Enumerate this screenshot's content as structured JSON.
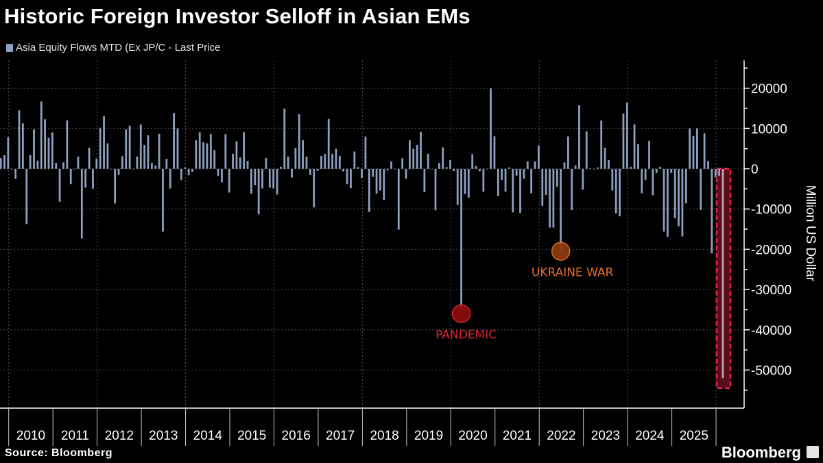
{
  "title": "Historic Foreign Investor Selloff in Asian EMs",
  "legend_label": "Asia Equity Flows MTD (Ex JP/C - Last Price",
  "source": "Source: Bloomberg",
  "brand": "Bloomberg",
  "colors": {
    "bars": "#8d9fbe",
    "pandemic": "#e0262c",
    "ukraine": "#e8702a",
    "highlight": "#e8234a",
    "background": "#000000"
  },
  "chart_data": {
    "type": "bar",
    "title": "Historic Foreign Investor Selloff in Asian EMs",
    "ylabel": "Million US Dollar",
    "ylim": [
      -60000,
      27000
    ],
    "yticks": [
      "20000",
      "10000",
      "0",
      "-10000",
      "-20000",
      "-30000",
      "-40000",
      "-50000"
    ],
    "xticks": [
      "2010",
      "2011",
      "2012",
      "2013",
      "2014",
      "2015",
      "2016",
      "2017",
      "2018",
      "2019",
      "2020",
      "2021",
      "2022",
      "2023",
      "2024",
      "2025"
    ],
    "grid": true,
    "legend": "top-left",
    "series": [
      {
        "name": "Asia Equity Flows MTD (Ex JP/C - Last Price",
        "monthly": [
          {
            "year": 2009,
            "first_month": 11,
            "values": [
              2700,
              3400
            ]
          },
          {
            "year": 2010,
            "first_month": 1,
            "values": [
              7800,
              -200,
              -2500,
              14500,
              11300,
              -13800,
              3400,
              9800,
              2000,
              16700,
              12300,
              7700
            ]
          },
          {
            "year": 2011,
            "first_month": 1,
            "values": [
              9000,
              1400,
              -8200,
              1600,
              12000,
              -3800,
              0,
              3000,
              -17300,
              -4700,
              5200,
              -5000
            ]
          },
          {
            "year": 2012,
            "first_month": 1,
            "values": [
              2500,
              10200,
              13100,
              6300,
              -200,
              -8600,
              -1500,
              3100,
              9800,
              10700,
              0,
              3000
            ]
          },
          {
            "year": 2013,
            "first_month": 1,
            "values": [
              11000,
              5900,
              8300,
              1400,
              800,
              8700,
              -15600,
              2400,
              -4900,
              13800,
              10000,
              -2800
            ]
          },
          {
            "year": 2014,
            "first_month": 1,
            "values": [
              300,
              -1600,
              -800,
              7100,
              9100,
              6600,
              6300,
              8600,
              4600,
              -1800,
              -3400,
              8600
            ]
          },
          {
            "year": 2015,
            "first_month": 1,
            "values": [
              -5900,
              3700,
              6800,
              2800,
              9100,
              1900,
              -6200,
              -4100,
              -11300,
              -4900,
              2700,
              -4700
            ]
          },
          {
            "year": 2016,
            "first_month": 1,
            "values": [
              -4900,
              -6400,
              500,
              14900,
              3000,
              -2200,
              5100,
              13600,
              7100,
              3000,
              -1500,
              -9600
            ]
          },
          {
            "year": 2017,
            "first_month": 1,
            "values": [
              -500,
              3200,
              3700,
              12400,
              3700,
              5000,
              3200,
              -700,
              -3800,
              -4800,
              4300,
              400
            ]
          },
          {
            "year": 2018,
            "first_month": 1,
            "values": [
              -2300,
              8000,
              -10700,
              -2000,
              -6200,
              -5400,
              -7800,
              -400,
              1800,
              0,
              -15100,
              2600
            ]
          },
          {
            "year": 2019,
            "first_month": 1,
            "values": [
              -2500,
              7100,
              5000,
              5900,
              9200,
              -5800,
              3700,
              0,
              -10300,
              1400,
              5300,
              400
            ]
          },
          {
            "year": 2020,
            "first_month": 1,
            "values": [
              2200,
              -600,
              -9000,
              -36000,
              -6300,
              -7200,
              3600,
              700,
              -600,
              -5700,
              0,
              20000
            ]
          },
          {
            "year": 2021,
            "first_month": 1,
            "values": [
              8100,
              -6800,
              -2800,
              -5700,
              300,
              -10800,
              -1700,
              -11000,
              -2500,
              1800,
              -6100,
              1800
            ]
          },
          {
            "year": 2022,
            "first_month": 1,
            "values": [
              5800,
              -9200,
              -6500,
              -14600,
              -14600,
              -4500,
              -20500,
              1600,
              8000,
              -10200,
              800,
              15800
            ]
          },
          {
            "year": 2023,
            "first_month": 1,
            "values": [
              -5200,
              9300,
              100,
              -200,
              300,
              12000,
              5200,
              2200,
              -5400,
              -11100,
              -11800,
              13700
            ]
          },
          {
            "year": 2024,
            "first_month": 1,
            "values": [
              16400,
              500,
              11000,
              6100,
              -6100,
              -2800,
              6900,
              -6600,
              -1000,
              500,
              -15600,
              -16900
            ]
          },
          {
            "year": 2025,
            "first_month": 1,
            "values": [
              -1000,
              -12300,
              -14300,
              -16800,
              -8600,
              10000,
              8200,
              10000,
              -10200,
              8800,
              1900,
              -21000
            ]
          },
          {
            "year": 2026,
            "first_month": 1,
            "values": [
              -2100,
              -1800,
              -52000
            ]
          }
        ]
      }
    ],
    "annotations": [
      {
        "label": "PANDEMIC",
        "value": -36000,
        "year": 2020,
        "month": 4
      },
      {
        "label": "UKRAINE WAR",
        "value": -20500,
        "year": 2022,
        "month": 7
      }
    ],
    "highlight": {
      "value": -52000,
      "year": 2026,
      "month": 3
    }
  }
}
